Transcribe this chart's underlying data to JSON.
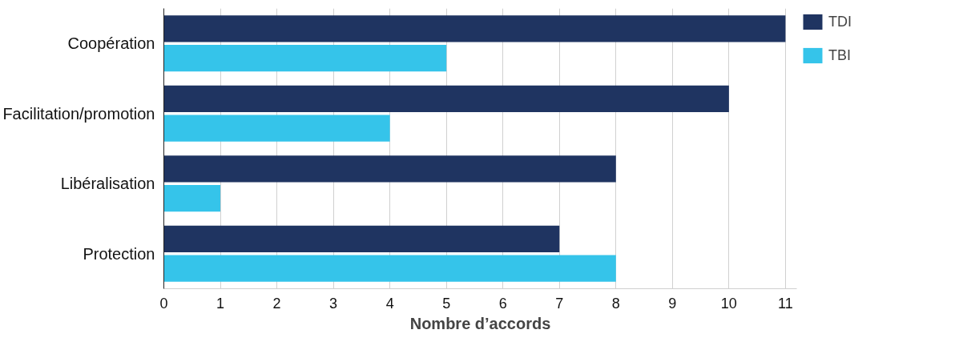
{
  "chart_data": {
    "type": "bar",
    "orientation": "horizontal",
    "xlabel": "Nombre d’accords",
    "categories": [
      "Coopération",
      "Facilitation/promotion",
      "Libéralisation",
      "Protection"
    ],
    "series": [
      {
        "name": "TDI",
        "color": "#1f3461",
        "values": [
          11,
          10,
          8,
          7
        ]
      },
      {
        "name": "TBI",
        "color": "#35c4ea",
        "values": [
          5,
          4,
          1,
          8
        ]
      }
    ],
    "xlim": [
      0,
      11.2
    ],
    "xticks": [
      0,
      1,
      2,
      3,
      4,
      5,
      6,
      7,
      8,
      9,
      10,
      11
    ],
    "grid": "x",
    "legend": "top right"
  }
}
